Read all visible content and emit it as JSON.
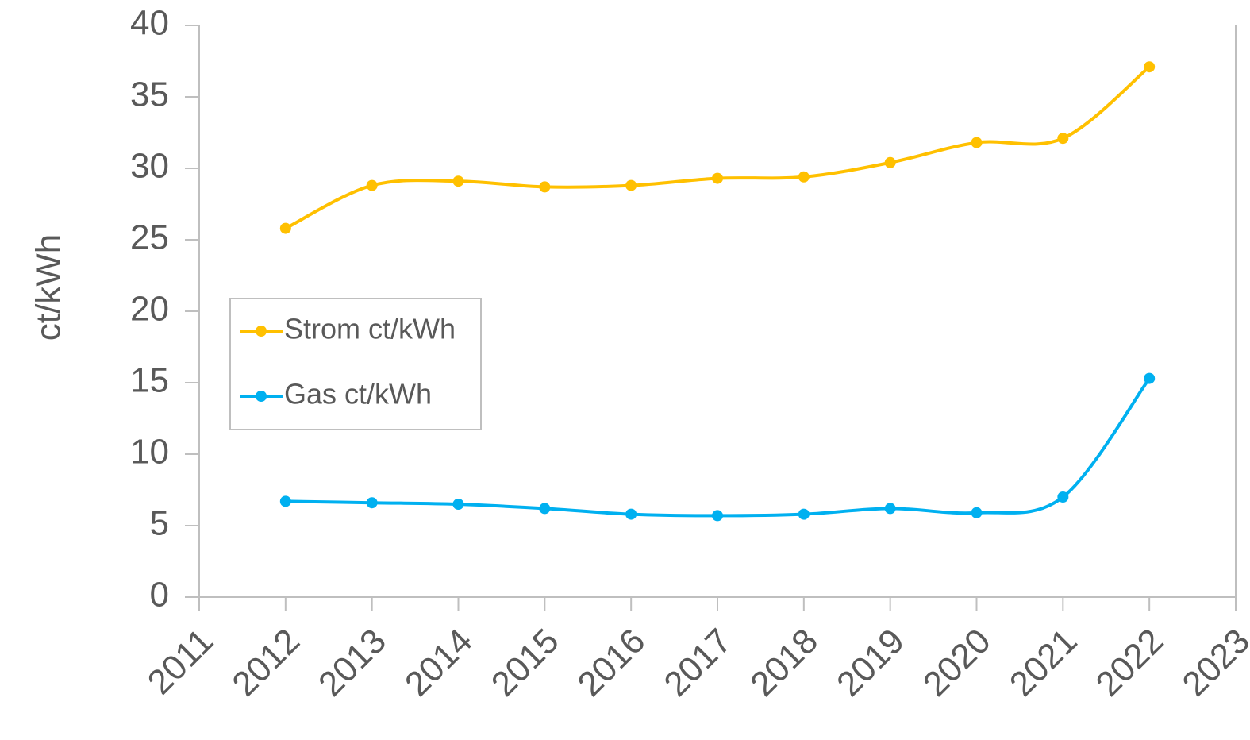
{
  "chart_data": {
    "type": "line",
    "y_label": "ct/kWh",
    "x": [
      2012,
      2013,
      2014,
      2015,
      2016,
      2017,
      2018,
      2019,
      2020,
      2021,
      2022
    ],
    "series": [
      {
        "name": "Strom ct/kWh",
        "color": "#ffc000",
        "values": [
          25.8,
          28.8,
          29.1,
          28.7,
          28.8,
          29.3,
          29.4,
          30.4,
          31.8,
          32.1,
          37.1
        ]
      },
      {
        "name": "Gas ct/kWh",
        "color": "#00b0f0",
        "values": [
          6.7,
          6.6,
          6.5,
          6.2,
          5.8,
          5.7,
          5.8,
          6.2,
          5.9,
          7.0,
          15.3
        ]
      }
    ],
    "xlim": [
      2011,
      2023
    ],
    "xticks": [
      2011,
      2012,
      2013,
      2014,
      2015,
      2016,
      2017,
      2018,
      2019,
      2020,
      2021,
      2022,
      2023
    ],
    "ylim": [
      0,
      40
    ],
    "yticks": [
      0,
      5,
      10,
      15,
      20,
      25,
      30,
      35,
      40
    ],
    "smooth": true,
    "legend": "left"
  }
}
